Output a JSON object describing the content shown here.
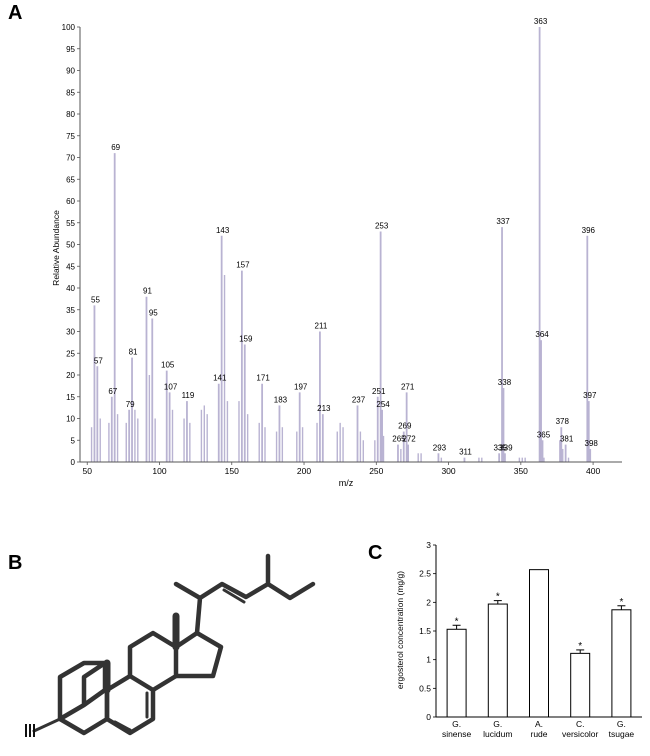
{
  "panels": {
    "a": "A",
    "b": "B",
    "c": "C"
  },
  "chart_data": [
    {
      "type": "bar",
      "subtype": "mass-spectrum",
      "xlabel": "m/z",
      "ylabel": "Relative Abundance",
      "xlim": [
        45,
        420
      ],
      "ylim": [
        0,
        100
      ],
      "xticks": [
        50,
        100,
        150,
        200,
        250,
        300,
        350,
        400
      ],
      "yticks": [
        0,
        5,
        10,
        15,
        20,
        25,
        30,
        35,
        40,
        45,
        50,
        55,
        60,
        65,
        70,
        75,
        80,
        85,
        90,
        95,
        100
      ],
      "grid": false,
      "labeled_peaks": [
        {
          "mz": 55,
          "value": 36,
          "label": "55"
        },
        {
          "mz": 57,
          "value": 22,
          "label": "57"
        },
        {
          "mz": 67,
          "value": 15,
          "label": "67"
        },
        {
          "mz": 69,
          "value": 71,
          "label": "69"
        },
        {
          "mz": 79,
          "value": 12,
          "label": "79"
        },
        {
          "mz": 81,
          "value": 24,
          "label": "81"
        },
        {
          "mz": 91,
          "value": 38,
          "label": "91"
        },
        {
          "mz": 95,
          "value": 33,
          "label": "95"
        },
        {
          "mz": 105,
          "value": 21,
          "label": "105"
        },
        {
          "mz": 107,
          "value": 16,
          "label": "107"
        },
        {
          "mz": 119,
          "value": 14,
          "label": "119"
        },
        {
          "mz": 141,
          "value": 18,
          "label": "141"
        },
        {
          "mz": 143,
          "value": 52,
          "label": "143"
        },
        {
          "mz": 157,
          "value": 44,
          "label": "157"
        },
        {
          "mz": 159,
          "value": 27,
          "label": "159"
        },
        {
          "mz": 171,
          "value": 18,
          "label": "171"
        },
        {
          "mz": 183,
          "value": 13,
          "label": "183"
        },
        {
          "mz": 197,
          "value": 16,
          "label": "197"
        },
        {
          "mz": 211,
          "value": 30,
          "label": "211"
        },
        {
          "mz": 213,
          "value": 11,
          "label": "213"
        },
        {
          "mz": 237,
          "value": 13,
          "label": "237"
        },
        {
          "mz": 251,
          "value": 15,
          "label": "251"
        },
        {
          "mz": 253,
          "value": 53,
          "label": "253"
        },
        {
          "mz": 254,
          "value": 12,
          "label": "254"
        },
        {
          "mz": 265,
          "value": 4,
          "label": "265"
        },
        {
          "mz": 269,
          "value": 7,
          "label": "269"
        },
        {
          "mz": 271,
          "value": 16,
          "label": "271"
        },
        {
          "mz": 272,
          "value": 4,
          "label": "272"
        },
        {
          "mz": 293,
          "value": 2,
          "label": "293"
        },
        {
          "mz": 311,
          "value": 1,
          "label": "311"
        },
        {
          "mz": 335,
          "value": 2,
          "label": "335"
        },
        {
          "mz": 337,
          "value": 54,
          "label": "337"
        },
        {
          "mz": 338,
          "value": 17,
          "label": "338"
        },
        {
          "mz": 339,
          "value": 2,
          "label": "339"
        },
        {
          "mz": 363,
          "value": 100,
          "label": "363"
        },
        {
          "mz": 364,
          "value": 28,
          "label": "364"
        },
        {
          "mz": 365,
          "value": 5,
          "label": "365"
        },
        {
          "mz": 378,
          "value": 8,
          "label": "378"
        },
        {
          "mz": 381,
          "value": 4,
          "label": "381"
        },
        {
          "mz": 396,
          "value": 52,
          "label": "396"
        },
        {
          "mz": 397,
          "value": 14,
          "label": "397"
        },
        {
          "mz": 398,
          "value": 3,
          "label": "398"
        }
      ],
      "minor_peaks": [
        {
          "mz": 53,
          "value": 8
        },
        {
          "mz": 59,
          "value": 10
        },
        {
          "mz": 65,
          "value": 9
        },
        {
          "mz": 71,
          "value": 11
        },
        {
          "mz": 77,
          "value": 9
        },
        {
          "mz": 83,
          "value": 12
        },
        {
          "mz": 85,
          "value": 10
        },
        {
          "mz": 93,
          "value": 20
        },
        {
          "mz": 97,
          "value": 10
        },
        {
          "mz": 109,
          "value": 12
        },
        {
          "mz": 117,
          "value": 10
        },
        {
          "mz": 121,
          "value": 9
        },
        {
          "mz": 129,
          "value": 12
        },
        {
          "mz": 131,
          "value": 13
        },
        {
          "mz": 133,
          "value": 11
        },
        {
          "mz": 145,
          "value": 43
        },
        {
          "mz": 147,
          "value": 14
        },
        {
          "mz": 155,
          "value": 14
        },
        {
          "mz": 161,
          "value": 11
        },
        {
          "mz": 169,
          "value": 9
        },
        {
          "mz": 173,
          "value": 8
        },
        {
          "mz": 181,
          "value": 7
        },
        {
          "mz": 185,
          "value": 8
        },
        {
          "mz": 195,
          "value": 7
        },
        {
          "mz": 199,
          "value": 8
        },
        {
          "mz": 209,
          "value": 9
        },
        {
          "mz": 223,
          "value": 7
        },
        {
          "mz": 225,
          "value": 9
        },
        {
          "mz": 227,
          "value": 8
        },
        {
          "mz": 239,
          "value": 7
        },
        {
          "mz": 241,
          "value": 5
        },
        {
          "mz": 249,
          "value": 5
        },
        {
          "mz": 255,
          "value": 6
        },
        {
          "mz": 267,
          "value": 3
        },
        {
          "mz": 279,
          "value": 2
        },
        {
          "mz": 281,
          "value": 2
        },
        {
          "mz": 295,
          "value": 1
        },
        {
          "mz": 321,
          "value": 1
        },
        {
          "mz": 323,
          "value": 1
        },
        {
          "mz": 349,
          "value": 1
        },
        {
          "mz": 351,
          "value": 1
        },
        {
          "mz": 353,
          "value": 1
        },
        {
          "mz": 366,
          "value": 1
        },
        {
          "mz": 377,
          "value": 5
        },
        {
          "mz": 379,
          "value": 3
        },
        {
          "mz": 383,
          "value": 1
        }
      ],
      "bar_color": "#b9b3d2"
    },
    {
      "type": "bar",
      "ylabel": "ergosterol concentration (mg/g)",
      "ylim": [
        0,
        3
      ],
      "yticks": [
        "0",
        "0.5",
        "1",
        "1.5",
        "2",
        "2.5",
        "3"
      ],
      "grid": false,
      "categories": [
        {
          "line1": "G.",
          "line2": "sinense"
        },
        {
          "line1": "G.",
          "line2": "lucidum"
        },
        {
          "line1": "A.",
          "line2": "rude"
        },
        {
          "line1": "C.",
          "line2": "versicolor"
        },
        {
          "line1": "G.",
          "line2": "tsugae"
        }
      ],
      "values": [
        1.53,
        1.97,
        2.57,
        1.11,
        1.87
      ],
      "errors": [
        0.07,
        0.06,
        0,
        0.06,
        0.07
      ],
      "significance": [
        "*",
        "*",
        "",
        "*",
        "*"
      ]
    }
  ]
}
